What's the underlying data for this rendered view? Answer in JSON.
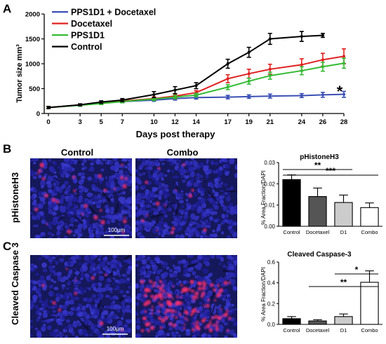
{
  "panel_labels": [
    "A",
    "B",
    "C"
  ],
  "chart_data": [
    {
      "type": "line",
      "panel": "A",
      "xlabel": "Days post therapy",
      "ylabel": "Tumor size mm³",
      "x": [
        0,
        3,
        5,
        7,
        10,
        12,
        14,
        17,
        19,
        21,
        24,
        26,
        28
      ],
      "xticks": [
        "0",
        "3",
        "5",
        "7",
        "10",
        "12",
        "14",
        "17",
        "19",
        "21",
        "24",
        "26",
        "28"
      ],
      "yticks": [
        "0",
        "500",
        "1000",
        "1500",
        "2000"
      ],
      "ylim": [
        0,
        2000
      ],
      "legend_position": "top-left",
      "annotation": "*",
      "series": [
        {
          "name": "PPS1D1 + Docetaxel",
          "color": "#3a4fb5",
          "x": [
            0,
            3,
            5,
            7,
            10,
            12,
            14,
            17,
            19,
            21,
            24,
            26,
            28
          ],
          "values": [
            120,
            170,
            210,
            240,
            270,
            300,
            320,
            330,
            340,
            350,
            360,
            375,
            385
          ],
          "err": [
            20,
            20,
            20,
            25,
            25,
            30,
            30,
            35,
            35,
            40,
            40,
            50,
            60
          ]
        },
        {
          "name": "Docetaxel",
          "color": "#e02020",
          "x": [
            0,
            3,
            5,
            7,
            10,
            12,
            14,
            17,
            19,
            21,
            24,
            26,
            28
          ],
          "values": [
            120,
            170,
            210,
            250,
            300,
            350,
            420,
            700,
            800,
            890,
            980,
            1080,
            1150
          ],
          "err": [
            20,
            20,
            20,
            30,
            35,
            40,
            40,
            80,
            90,
            100,
            120,
            130,
            150
          ]
        },
        {
          "name": "PPS1D1",
          "color": "#33bb33",
          "x": [
            0,
            3,
            5,
            7,
            10,
            12,
            14,
            17,
            19,
            21,
            24,
            26,
            28
          ],
          "values": [
            120,
            165,
            200,
            240,
            290,
            330,
            370,
            530,
            650,
            760,
            860,
            940,
            1010
          ],
          "err": [
            20,
            20,
            20,
            25,
            30,
            35,
            35,
            50,
            60,
            70,
            80,
            90,
            100
          ]
        },
        {
          "name": "Control",
          "color": "#000000",
          "x": [
            0,
            3,
            5,
            7,
            10,
            12,
            14,
            17,
            19,
            21,
            24,
            26
          ],
          "values": [
            120,
            175,
            230,
            270,
            380,
            470,
            560,
            1000,
            1230,
            1500,
            1550,
            1570
          ],
          "err": [
            20,
            20,
            25,
            30,
            60,
            70,
            60,
            90,
            100,
            110,
            100,
            40
          ]
        }
      ]
    },
    {
      "type": "bar",
      "panel": "B",
      "title": "pHistoneH3",
      "ylabel": "% Area Fraction/DAPI",
      "categories": [
        "Control",
        "Docetaxel",
        "D1",
        "Combo"
      ],
      "values": [
        0.022,
        0.014,
        0.0112,
        0.0088
      ],
      "err": [
        0.0022,
        0.004,
        0.0035,
        0.0022
      ],
      "fills": [
        "#000000",
        "#555555",
        "#cccccc",
        "#ffffff"
      ],
      "yticks": [
        "0.00",
        "0.01",
        "0.02",
        "0.03"
      ],
      "ylim": [
        0,
        0.03
      ],
      "significance": [
        {
          "label": "**",
          "from": 0,
          "to": 2
        },
        {
          "label": "***",
          "from": 0,
          "to": 3
        }
      ]
    },
    {
      "type": "bar",
      "panel": "C",
      "title": "Cleaved Caspase-3",
      "ylabel": "% Area Fraction/DAPI",
      "categories": [
        "Control",
        "Docetaxel",
        "D1",
        "Combo"
      ],
      "values": [
        0.055,
        0.033,
        0.075,
        0.405
      ],
      "err": [
        0.02,
        0.012,
        0.025,
        0.11
      ],
      "fills": [
        "#000000",
        "#555555",
        "#cccccc",
        "#ffffff"
      ],
      "yticks": [
        "0.0",
        "0.2",
        "0.4",
        "0.6"
      ],
      "ylim": [
        0,
        0.6
      ],
      "significance": [
        {
          "label": "*",
          "from": 2,
          "to": 3
        },
        {
          "label": "**",
          "from": 1,
          "to": 3
        }
      ]
    }
  ],
  "micrographs": {
    "column_titles": [
      "Control",
      "Combo"
    ],
    "row_labels": [
      "pHistoneH3",
      "Cleaved Caspase 3"
    ],
    "scale_bar": "100μm",
    "colors": {
      "dapi": "#2a2fa0",
      "signal": "#ff3070"
    }
  }
}
